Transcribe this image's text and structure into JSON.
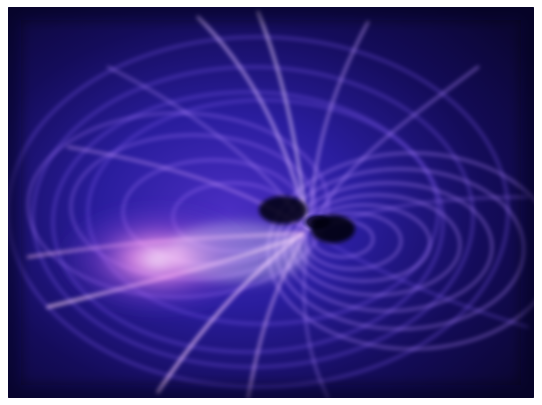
{
  "image": {
    "kind": "abstract-render",
    "colors": {
      "background": "#0b0634",
      "deep_blue": "#1a168a",
      "mid_violet": "#5b37d6",
      "light_violet": "#a679ff",
      "glow_pink": "#ff9bf2",
      "core_white": "#fff2ff",
      "center_dark": "#04020f"
    }
  }
}
